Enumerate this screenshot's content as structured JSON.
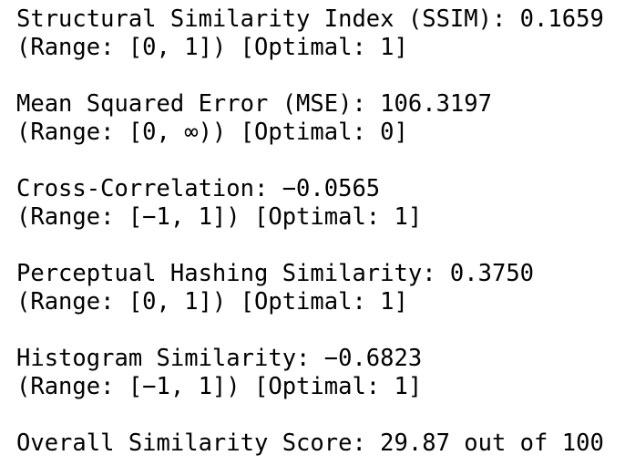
{
  "metrics": [
    {
      "result": "Structural Similarity Index (SSIM): 0.1659",
      "range": "(Range: [0, 1]) [Optimal: 1]"
    },
    {
      "result": "Mean Squared Error (MSE): 106.3197",
      "range": "(Range: [0, ∞)) [Optimal: 0]"
    },
    {
      "result": "Cross-Correlation: −0.0565",
      "range": "(Range: [−1, 1]) [Optimal: 1]"
    },
    {
      "result": "Perceptual Hashing Similarity: 0.3750",
      "range": "(Range: [0, 1]) [Optimal: 1]"
    },
    {
      "result": "Histogram Similarity: −0.6823",
      "range": "(Range: [−1, 1]) [Optimal: 1]"
    }
  ],
  "overall": "Overall Similarity Score: 29.87 out of 100"
}
